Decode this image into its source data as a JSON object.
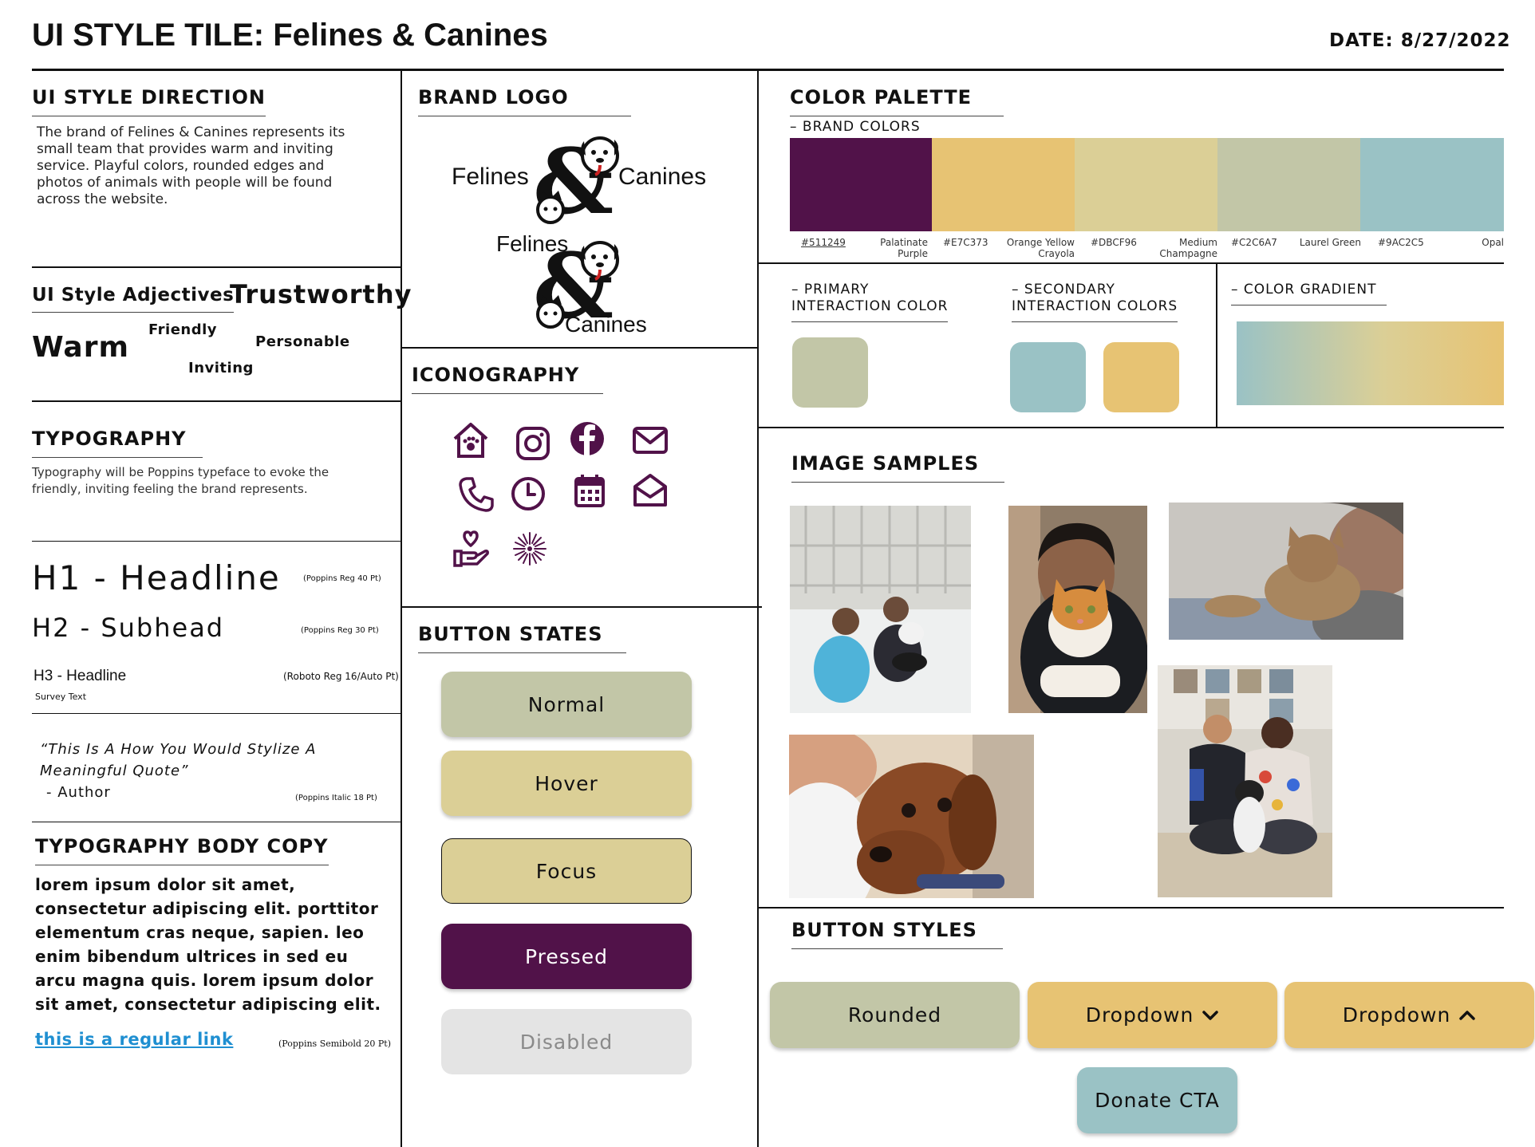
{
  "header": {
    "title": "UI STYLE TILE: Felines & Canines",
    "date": "DATE: 8/27/2022"
  },
  "style_direction": {
    "heading": "UI STYLE DIRECTION",
    "body": "The brand of Felines & Canines represents its small team that provides warm and inviting service. Playful colors, rounded edges and photos of animals with people will be found across the website."
  },
  "adjectives": {
    "heading": "UI Style Adjectives",
    "words": [
      "Trustworthy",
      "Friendly",
      "Personable",
      "Warm",
      "Inviting"
    ]
  },
  "typography": {
    "heading": "TYPOGRAPHY",
    "body": "Typography will be Poppins typeface to evoke the friendly, inviting feeling the brand represents.",
    "h1": "H1 - Headline",
    "h1_note": "(Poppins Reg 40 Pt)",
    "h2": "H2 - Subhead",
    "h2_note": "(Poppins Reg 30 Pt)",
    "h3": "H3 - Headline",
    "h3_note": "(Roboto Reg 16/Auto Pt)",
    "survey": "Survey Text",
    "quote_line1": "“This Is A How You Would Stylize A",
    "quote_line2": "Meaningful Quote”",
    "quote_author": "- Author",
    "quote_note": "(Poppins Italic 18 Pt)"
  },
  "body_copy": {
    "heading": "TYPOGRAPHY BODY COPY",
    "text": "lorem ipsum dolor sit amet, consectetur adipiscing elit. porttitor elementum cras neque, sapien. leo enim bibendum ultrices in sed eu arcu magna quis. lorem ipsum dolor sit amet, consectetur adipiscing elit.",
    "link": "this is a regular link",
    "note": "(Poppins Semibold 20 Pt)"
  },
  "brand_logo": {
    "heading": "BRAND LOGO",
    "word_left": "Felines",
    "word_right": "Canines",
    "word_top": "Felines",
    "word_bottom": "Canines"
  },
  "iconography": {
    "heading": "ICONOGRAPHY",
    "icons": [
      "house-paw-icon",
      "instagram-icon",
      "facebook-icon",
      "mail-icon",
      "phone-icon",
      "clock-icon",
      "calendar-icon",
      "mail-open-icon",
      "hand-heart-icon",
      "sparkle-icon"
    ],
    "icon_color": "#511249"
  },
  "button_states": {
    "heading": "BUTTON STATES",
    "normal": "Normal",
    "hover": "Hover",
    "focus": "Focus",
    "pressed": "Pressed",
    "disabled": "Disabled"
  },
  "palette": {
    "heading": "COLOR PALETTE",
    "brand_heading": "– BRAND COLORS",
    "colors": [
      {
        "hex": "#511249",
        "name_1": "Palatinate",
        "name_2": "Purple"
      },
      {
        "hex": "#E7C373",
        "name_1": "Orange Yellow",
        "name_2": "Crayola"
      },
      {
        "hex": "#DBCF96",
        "name_1": "Medium",
        "name_2": "Champagne"
      },
      {
        "hex": "#C2C6A7",
        "name_1": "Laurel Green",
        "name_2": ""
      },
      {
        "hex": "#9AC2C5",
        "name_1": "Opal",
        "name_2": ""
      }
    ],
    "primary_heading_1": "– PRIMARY",
    "primary_heading_2": "INTERACTION COLOR",
    "secondary_heading_1": "– SECONDARY",
    "secondary_heading_2": "INTERACTION COLORS",
    "gradient_heading": "– COLOR GRADIENT"
  },
  "image_samples": {
    "heading": "IMAGE SAMPLES"
  },
  "button_styles": {
    "heading": "BUTTON STYLES",
    "rounded": "Rounded",
    "dropdown_down": "Dropdown",
    "dropdown_up": "Dropdown",
    "donate": "Donate CTA"
  }
}
